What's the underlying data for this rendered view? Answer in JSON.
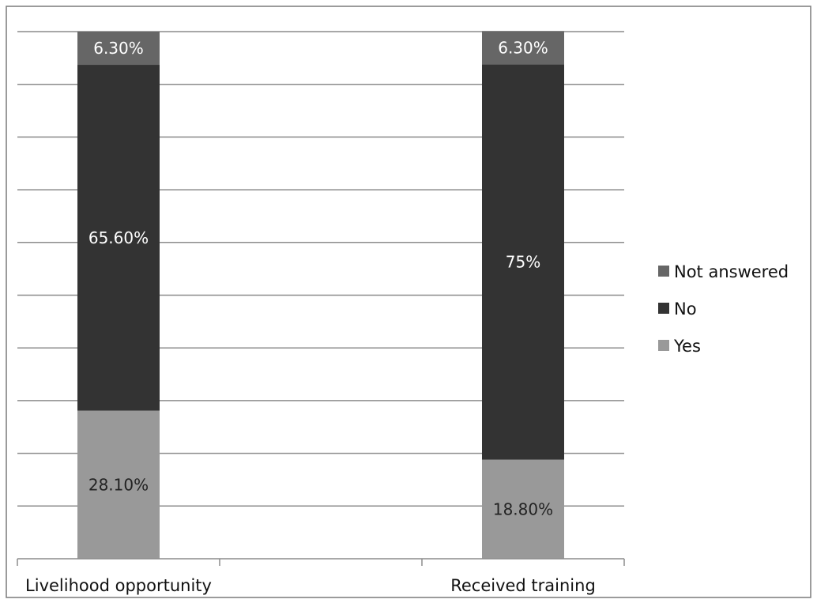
{
  "chart_data": {
    "type": "bar",
    "stacked": true,
    "categories": [
      "Livelihood opportunity",
      "Received training"
    ],
    "series": [
      {
        "name": "Yes",
        "values": [
          28.1,
          18.8
        ],
        "labels": [
          "28.10%",
          "18.80%"
        ],
        "color": "#999999",
        "label_color": "#222222"
      },
      {
        "name": "No",
        "values": [
          65.6,
          75
        ],
        "labels": [
          "65.60%",
          "75%"
        ],
        "color": "#333333",
        "label_color": "#ffffff"
      },
      {
        "name": "Not answered",
        "values": [
          6.3,
          6.3
        ],
        "labels": [
          "6.30%",
          "6.30%"
        ],
        "color": "#666666",
        "label_color": "#ffffff"
      }
    ],
    "legend_order": [
      "Not answered",
      "No",
      "Yes"
    ],
    "ylim": [
      0,
      100
    ],
    "grid": true,
    "legend_position": "right",
    "title": "",
    "xlabel": "",
    "ylabel": ""
  }
}
